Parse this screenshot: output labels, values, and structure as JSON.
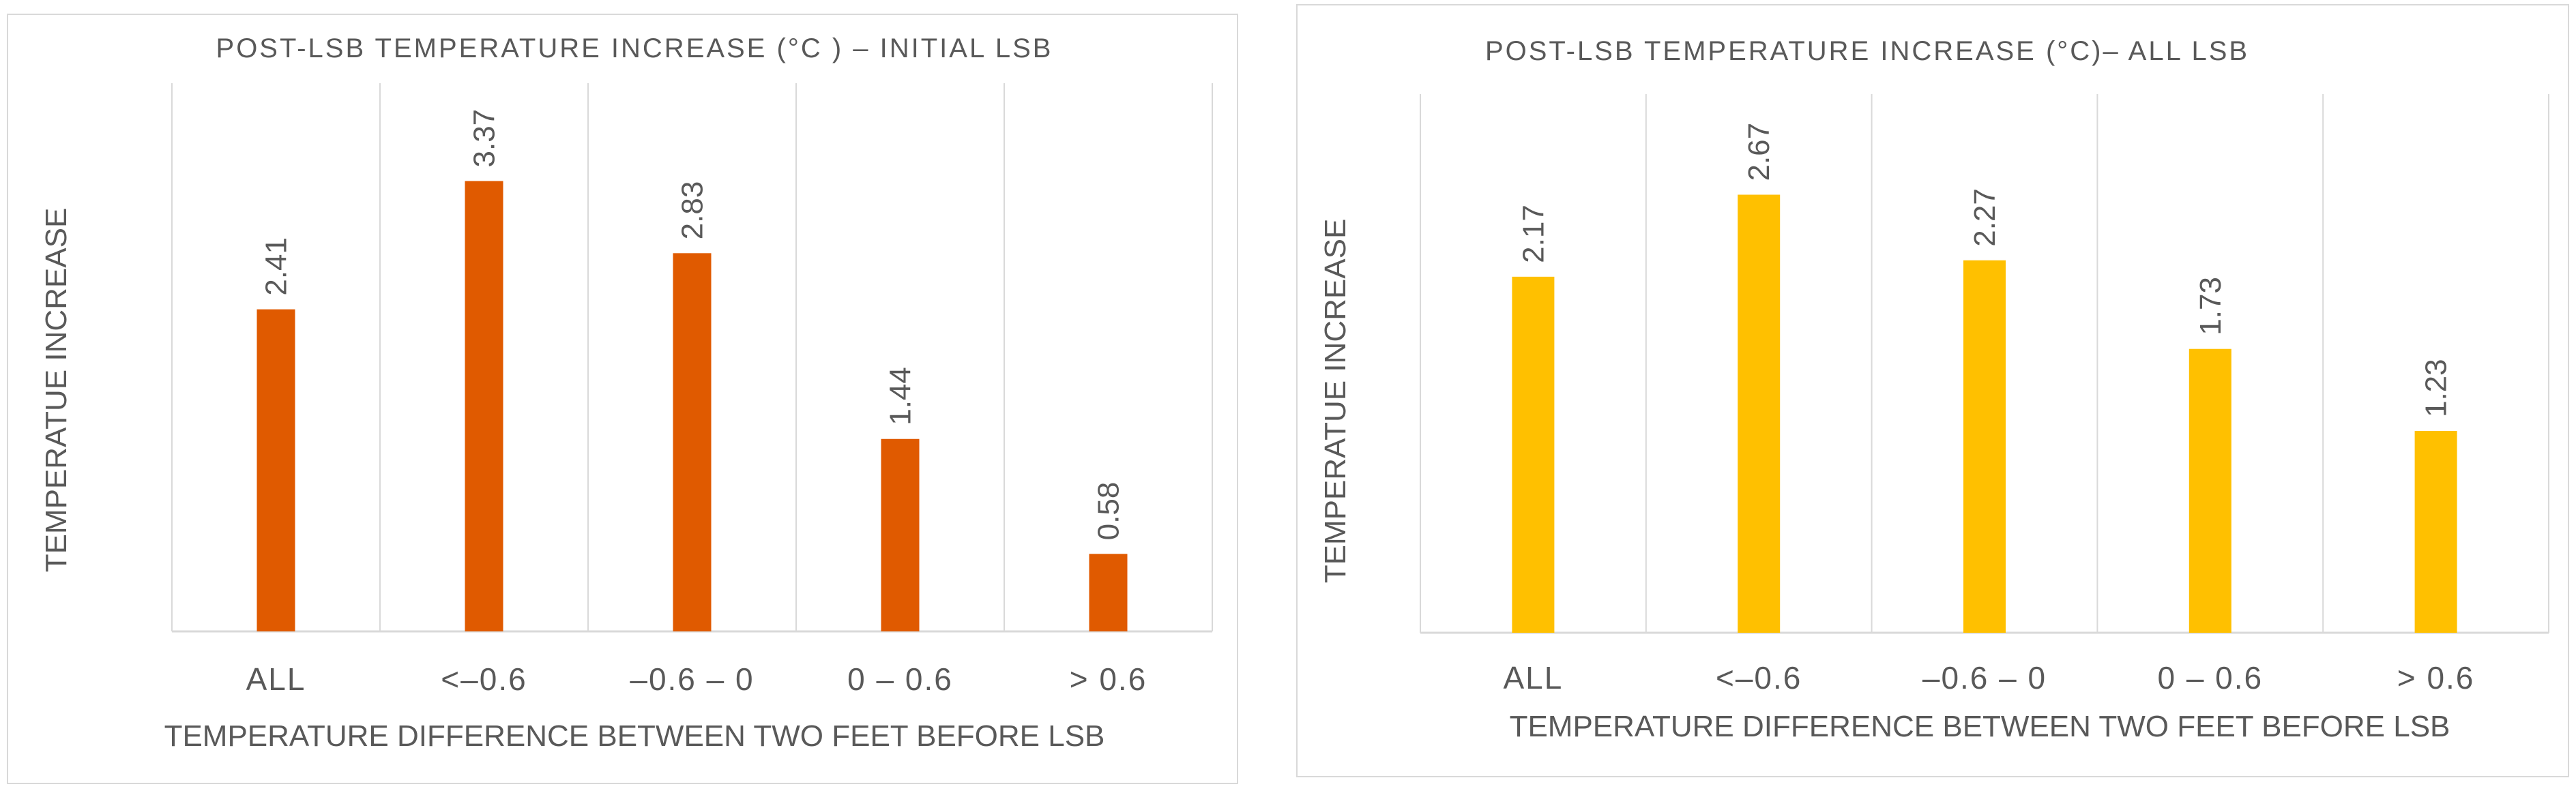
{
  "chart_data": [
    {
      "type": "bar",
      "title": "POST-LSB TEMPERATURE INCREASE (°C ) – INITIAL LSB",
      "xlabel": "TEMPERATURE DIFFERENCE BETWEEN TWO FEET BEFORE LSB",
      "ylabel": "TEMPERATUE INCREASE",
      "categories": [
        "ALL",
        "<–0.6",
        "–0.6 – 0",
        "0 – 0.6",
        "> 0.6"
      ],
      "values": [
        2.41,
        3.37,
        2.83,
        1.44,
        0.58
      ],
      "value_labels": [
        "2.41",
        "3.37",
        "2.83",
        "1.44",
        "0.58"
      ],
      "ylim": [
        0,
        4
      ],
      "bar_color": "#E05A00",
      "grid": "vertical separators"
    },
    {
      "type": "bar",
      "title": "POST-LSB TEMPERATURE INCREASE (°C)– ALL LSB",
      "xlabel": "TEMPERATURE DIFFERENCE BETWEEN TWO FEET BEFORE LSB",
      "ylabel": "TEMPERATUE INCREASE",
      "categories": [
        "ALL",
        "<–0.6",
        "–0.6 – 0",
        "0 – 0.6",
        "> 0.6"
      ],
      "values": [
        2.17,
        2.67,
        2.27,
        1.73,
        1.23
      ],
      "value_labels": [
        "2.17",
        "2.67",
        "2.27",
        "1.73",
        "1.23"
      ],
      "ylim": [
        0,
        3.2
      ],
      "bar_color": "#FFC000",
      "grid": "vertical separators"
    }
  ]
}
